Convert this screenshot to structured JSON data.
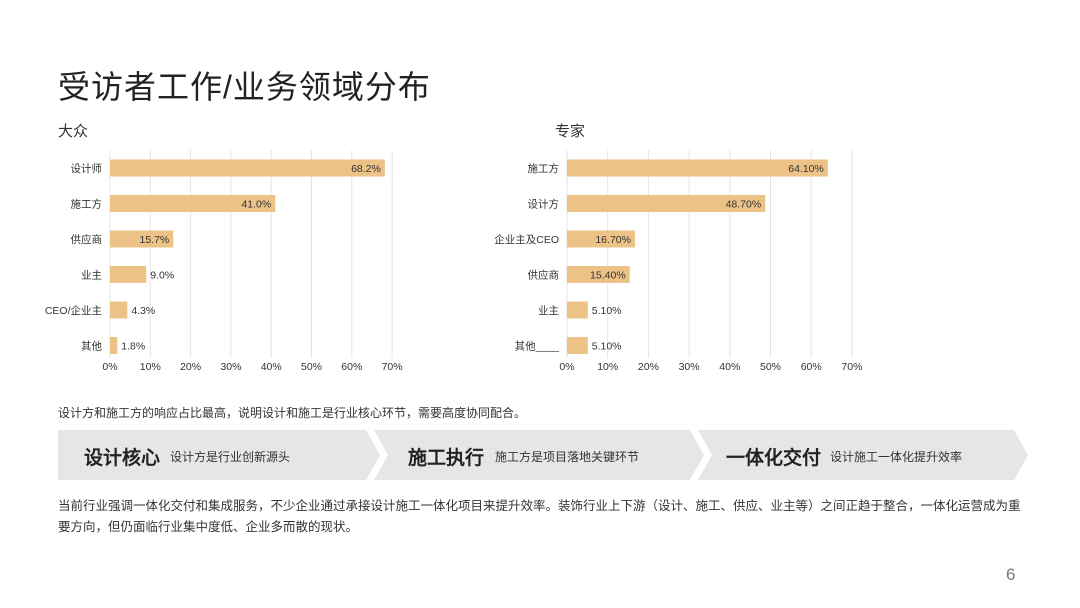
{
  "title": "受访者工作/业务领域分布",
  "chart_data": [
    {
      "type": "bar",
      "orientation": "horizontal",
      "title": "大众",
      "categories": [
        "设计师",
        "施工方",
        "供应商",
        "业主",
        "CEO/企业主",
        "其他"
      ],
      "values": [
        68.2,
        41.0,
        15.7,
        9.0,
        4.3,
        1.8
      ],
      "value_labels": [
        "68.2%",
        "41.0%",
        "15.7%",
        "9.0%",
        "4.3%",
        "1.8%"
      ],
      "xlim": [
        0,
        70
      ],
      "xticks": [
        "0%",
        "10%",
        "20%",
        "30%",
        "40%",
        "50%",
        "60%",
        "70%"
      ],
      "bar_color": "#edc287",
      "grid": true
    },
    {
      "type": "bar",
      "orientation": "horizontal",
      "title": "专家",
      "categories": [
        "施工方",
        "设计方",
        "企业主及CEO",
        "供应商",
        "业主",
        "其他____"
      ],
      "values": [
        64.1,
        48.7,
        16.7,
        15.4,
        5.1,
        5.1
      ],
      "value_labels": [
        "64.10%",
        "48.70%",
        "16.70%",
        "15.40%",
        "5.10%",
        "5.10%"
      ],
      "xlim": [
        0,
        70
      ],
      "xticks": [
        "0%",
        "10%",
        "20%",
        "30%",
        "40%",
        "50%",
        "60%",
        "70%"
      ],
      "bar_color": "#edc287",
      "grid": true
    }
  ],
  "note": "设计方和施工方的响应占比最高，说明设计和施工是行业核心环节，需要高度协同配合。",
  "steps": [
    {
      "title": "设计核心",
      "desc": "设计方是行业创新源头"
    },
    {
      "title": "施工执行",
      "desc": "施工方是项目落地关键环节"
    },
    {
      "title": "一体化交付",
      "desc": "设计施工一体化提升效率"
    }
  ],
  "paragraph": "当前行业强调一体化交付和集成服务，不少企业通过承接设计施工一体化项目来提升效率。装饰行业上下游（设计、施工、供应、业主等）之间正趋于整合，一体化运营成为重要方向，但仍面临行业集中度低、企业多而散的现状。",
  "page_number": "6"
}
